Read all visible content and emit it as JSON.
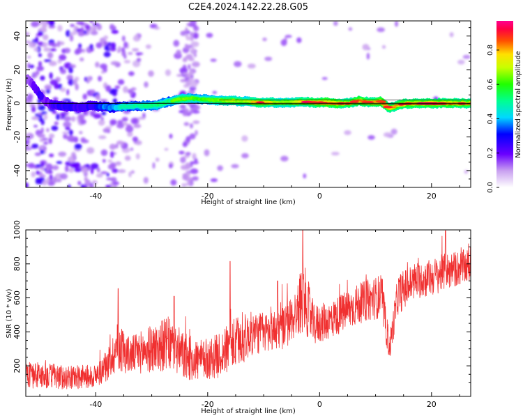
{
  "title": "C2E4.2024.142.22.28.G05",
  "chart_data": [
    {
      "type": "heatmap",
      "title": "",
      "xlabel": "Height of straight line (km)",
      "ylabel": "Frequency (Hz)",
      "xlim": [
        -52.5,
        27
      ],
      "ylim": [
        -50,
        49
      ],
      "x_ticks": [
        -40,
        -20,
        0,
        20
      ],
      "x_tick_labels": [
        "-40",
        "-20",
        "0",
        "20"
      ],
      "y_ticks": [
        -40,
        -20,
        0,
        20,
        40
      ],
      "y_tick_labels": [
        "-40",
        "-20",
        "0",
        "20",
        "40"
      ],
      "colorbar": {
        "label": "Normalized spectral amplitude",
        "range": [
          0.0,
          0.97
        ],
        "ticks": [
          0.0,
          0.2,
          0.4,
          0.6,
          0.8
        ],
        "tick_labels": [
          "0.0",
          "0.2",
          "0.4",
          "0.6",
          "0.8"
        ]
      },
      "ridge": {
        "description_of_values": "dominant frequency track (Hz) vs height (km)",
        "x": [
          -52,
          -51,
          -50,
          -49,
          -47,
          -45,
          -43,
          -41,
          -39,
          -37,
          -35,
          -33,
          -31,
          -29,
          -27,
          -25,
          -23,
          -21,
          -19,
          -17,
          -15,
          -13,
          -11,
          -9,
          -7,
          -5,
          -3,
          -1,
          1,
          3,
          5,
          7,
          9,
          11,
          12.5,
          14,
          16,
          18,
          20,
          22,
          24,
          27
        ],
        "y": [
          14,
          10,
          5,
          1,
          -1.5,
          -2,
          -2.5,
          -1.5,
          -2,
          -2.5,
          -2,
          -1.5,
          -1.5,
          -1,
          1,
          2.5,
          3,
          2.5,
          2,
          1.5,
          1.5,
          1,
          0.5,
          0.5,
          0.5,
          0.5,
          1,
          0.5,
          0.5,
          0,
          0,
          1.5,
          0.5,
          1,
          -3,
          -1,
          0,
          0,
          0,
          0,
          0,
          0
        ],
        "amplitude": [
          0.15,
          0.2,
          0.25,
          0.2,
          0.25,
          0.3,
          0.22,
          0.28,
          0.35,
          0.4,
          0.5,
          0.5,
          0.55,
          0.6,
          0.55,
          0.7,
          0.65,
          0.6,
          0.65,
          0.7,
          0.75,
          0.7,
          0.85,
          0.8,
          0.7,
          0.75,
          0.8,
          0.85,
          0.95,
          0.9,
          0.8,
          0.9,
          0.85,
          0.95,
          0.8,
          0.85,
          0.9,
          0.85,
          0.9,
          0.9,
          0.85,
          0.85
        ]
      },
      "reference_line_y": 0
    },
    {
      "type": "line",
      "title": "",
      "xlabel": "Height of straight line (km)",
      "ylabel": "SNR (10 * v/v)",
      "xlim": [
        -52.5,
        27
      ],
      "ylim": [
        20,
        1000
      ],
      "x_ticks": [
        -40,
        -20,
        0,
        20
      ],
      "x_tick_labels": [
        "-40",
        "-20",
        "0",
        "20"
      ],
      "y_ticks": [
        200,
        400,
        600,
        800,
        1000
      ],
      "y_tick_labels": [
        "200",
        "400",
        "600",
        "800",
        "1000"
      ],
      "series": [
        {
          "color": "#f03030",
          "trend_x": [
            -52.5,
            -45,
            -40,
            -38,
            -36,
            -34,
            -30,
            -27,
            -24,
            -21,
            -18,
            -15,
            -12,
            -9,
            -6,
            -4,
            -3,
            -1,
            2,
            5,
            8,
            11,
            12.5,
            14,
            17,
            20,
            23,
            27
          ],
          "trend_y": [
            150,
            130,
            140,
            200,
            320,
            260,
            300,
            330,
            250,
            230,
            260,
            330,
            390,
            400,
            430,
            520,
            620,
            440,
            470,
            530,
            580,
            610,
            300,
            620,
            700,
            720,
            760,
            790
          ],
          "noise_amplitude": [
            80,
            70,
            70,
            90,
            150,
            110,
            140,
            160,
            140,
            120,
            130,
            160,
            130,
            120,
            130,
            150,
            220,
            120,
            110,
            120,
            120,
            130,
            80,
            120,
            110,
            110,
            110,
            100
          ],
          "peaks": [
            {
              "x": -3.0,
              "y": 1000
            },
            {
              "x": 22.5,
              "y": 995
            },
            {
              "x": -16.0,
              "y": 815
            },
            {
              "x": -36.0,
              "y": 655
            },
            {
              "x": -7.5,
              "y": 700
            },
            {
              "x": -26.0,
              "y": 610
            }
          ]
        }
      ]
    }
  ]
}
